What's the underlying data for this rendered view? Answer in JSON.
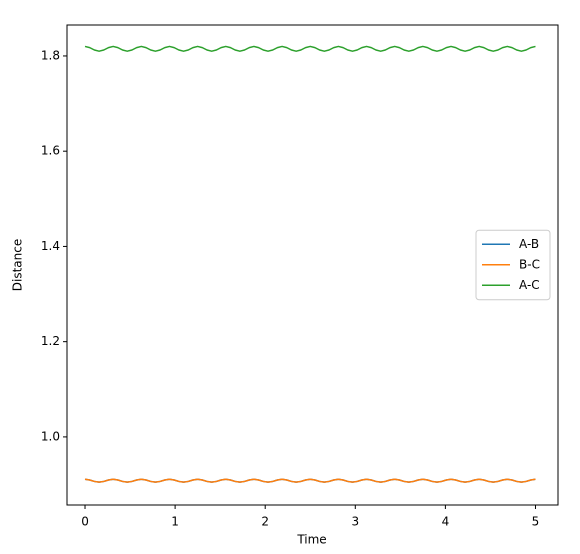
{
  "chart_data": {
    "type": "line",
    "xlabel": "Time",
    "ylabel": "Distance",
    "x": [
      0,
      0.0521,
      0.1042,
      0.1563,
      0.2083,
      0.2604,
      0.3125,
      0.3646,
      0.4167,
      0.4688,
      0.5208,
      0.5729,
      0.625,
      0.6771,
      0.7292,
      0.7813,
      0.8333,
      0.8854,
      0.9375,
      0.9896,
      1.0417,
      1.0938,
      1.1458,
      1.1979,
      1.25,
      1.3021,
      1.3542,
      1.4063,
      1.4583,
      1.5104,
      1.5625,
      1.6146,
      1.6667,
      1.7188,
      1.7708,
      1.8229,
      1.875,
      1.9271,
      1.9792,
      2.0313,
      2.0833,
      2.1354,
      2.1875,
      2.2396,
      2.2917,
      2.3438,
      2.3958,
      2.4479,
      2.5,
      2.5521,
      2.6042,
      2.6563,
      2.7083,
      2.7604,
      2.8125,
      2.8646,
      2.9167,
      2.9688,
      3.0208,
      3.0729,
      3.125,
      3.1771,
      3.2292,
      3.2813,
      3.3333,
      3.3854,
      3.4375,
      3.4896,
      3.5417,
      3.5938,
      3.6458,
      3.6979,
      3.75,
      3.8021,
      3.8542,
      3.9063,
      3.9583,
      4.0104,
      4.0625,
      4.1146,
      4.1667,
      4.2188,
      4.2708,
      4.3229,
      4.375,
      4.4271,
      4.4792,
      4.5313,
      4.5833,
      4.6354,
      4.6875,
      4.7396,
      4.7917,
      4.8438,
      4.8958,
      4.9479,
      5
    ],
    "series": [
      {
        "name": "A-B",
        "color": "#1f77b4",
        "values": [
          0.911,
          0.9095,
          0.9065,
          0.905,
          0.9065,
          0.9095,
          0.911,
          0.9095,
          0.9065,
          0.905,
          0.9065,
          0.9095,
          0.911,
          0.9095,
          0.9065,
          0.905,
          0.9065,
          0.9095,
          0.911,
          0.9095,
          0.9065,
          0.905,
          0.9065,
          0.9095,
          0.911,
          0.9095,
          0.9065,
          0.905,
          0.9065,
          0.9095,
          0.911,
          0.9095,
          0.9065,
          0.905,
          0.9065,
          0.9095,
          0.911,
          0.9095,
          0.9065,
          0.905,
          0.9065,
          0.9095,
          0.911,
          0.9095,
          0.9065,
          0.905,
          0.9065,
          0.9095,
          0.911,
          0.9095,
          0.9065,
          0.905,
          0.9065,
          0.9095,
          0.911,
          0.9095,
          0.9065,
          0.905,
          0.9065,
          0.9095,
          0.911,
          0.9095,
          0.9065,
          0.905,
          0.9065,
          0.9095,
          0.911,
          0.9095,
          0.9065,
          0.905,
          0.9065,
          0.9095,
          0.911,
          0.9095,
          0.9065,
          0.905,
          0.9065,
          0.9095,
          0.911,
          0.9095,
          0.9065,
          0.905,
          0.9065,
          0.9095,
          0.911,
          0.9095,
          0.9065,
          0.905,
          0.9065,
          0.9095,
          0.911,
          0.9095,
          0.9065,
          0.905,
          0.9065,
          0.9095,
          0.911
        ]
      },
      {
        "name": "B-C",
        "color": "#ff7f0e",
        "values": [
          0.911,
          0.9095,
          0.9065,
          0.905,
          0.9065,
          0.9095,
          0.911,
          0.9095,
          0.9065,
          0.905,
          0.9065,
          0.9095,
          0.911,
          0.9095,
          0.9065,
          0.905,
          0.9065,
          0.9095,
          0.911,
          0.9095,
          0.9065,
          0.905,
          0.9065,
          0.9095,
          0.911,
          0.9095,
          0.9065,
          0.905,
          0.9065,
          0.9095,
          0.911,
          0.9095,
          0.9065,
          0.905,
          0.9065,
          0.9095,
          0.911,
          0.9095,
          0.9065,
          0.905,
          0.9065,
          0.9095,
          0.911,
          0.9095,
          0.9065,
          0.905,
          0.9065,
          0.9095,
          0.911,
          0.9095,
          0.9065,
          0.905,
          0.9065,
          0.9095,
          0.911,
          0.9095,
          0.9065,
          0.905,
          0.9065,
          0.9095,
          0.911,
          0.9095,
          0.9065,
          0.905,
          0.9065,
          0.9095,
          0.911,
          0.9095,
          0.9065,
          0.905,
          0.9065,
          0.9095,
          0.911,
          0.9095,
          0.9065,
          0.905,
          0.9065,
          0.9095,
          0.911,
          0.9095,
          0.9065,
          0.905,
          0.9065,
          0.9095,
          0.911,
          0.9095,
          0.9065,
          0.905,
          0.9065,
          0.9095,
          0.911,
          0.9095,
          0.9065,
          0.905,
          0.9065,
          0.9095,
          0.911
        ]
      },
      {
        "name": "A-C",
        "color": "#2ca02c",
        "values": [
          1.82,
          1.8175,
          1.8125,
          1.81,
          1.8125,
          1.8175,
          1.82,
          1.8175,
          1.8125,
          1.81,
          1.8125,
          1.8175,
          1.82,
          1.8175,
          1.8125,
          1.81,
          1.8125,
          1.8175,
          1.82,
          1.8175,
          1.8125,
          1.81,
          1.8125,
          1.8175,
          1.82,
          1.8175,
          1.8125,
          1.81,
          1.8125,
          1.8175,
          1.82,
          1.8175,
          1.8125,
          1.81,
          1.8125,
          1.8175,
          1.82,
          1.8175,
          1.8125,
          1.81,
          1.8125,
          1.8175,
          1.82,
          1.8175,
          1.8125,
          1.81,
          1.8125,
          1.8175,
          1.82,
          1.8175,
          1.8125,
          1.81,
          1.8125,
          1.8175,
          1.82,
          1.8175,
          1.8125,
          1.81,
          1.8125,
          1.8175,
          1.82,
          1.8175,
          1.8125,
          1.81,
          1.8125,
          1.8175,
          1.82,
          1.8175,
          1.8125,
          1.81,
          1.8125,
          1.8175,
          1.82,
          1.8175,
          1.8125,
          1.81,
          1.8125,
          1.8175,
          1.82,
          1.8175,
          1.8125,
          1.81,
          1.8125,
          1.8175,
          1.82,
          1.8175,
          1.8125,
          1.81,
          1.8125,
          1.8175,
          1.82,
          1.8175,
          1.8125,
          1.81,
          1.8125,
          1.8175,
          1.82
        ]
      }
    ],
    "xlim": [
      -0.2,
      5.25
    ],
    "xticks": [
      0,
      1,
      2,
      3,
      4,
      5
    ],
    "ylim": [
      0.857,
      1.865
    ],
    "yticks": [
      {
        "value": 1,
        "label": "1.0"
      },
      1.2,
      1.4,
      1.6,
      1.8
    ],
    "grid": false,
    "legend": "center right"
  }
}
